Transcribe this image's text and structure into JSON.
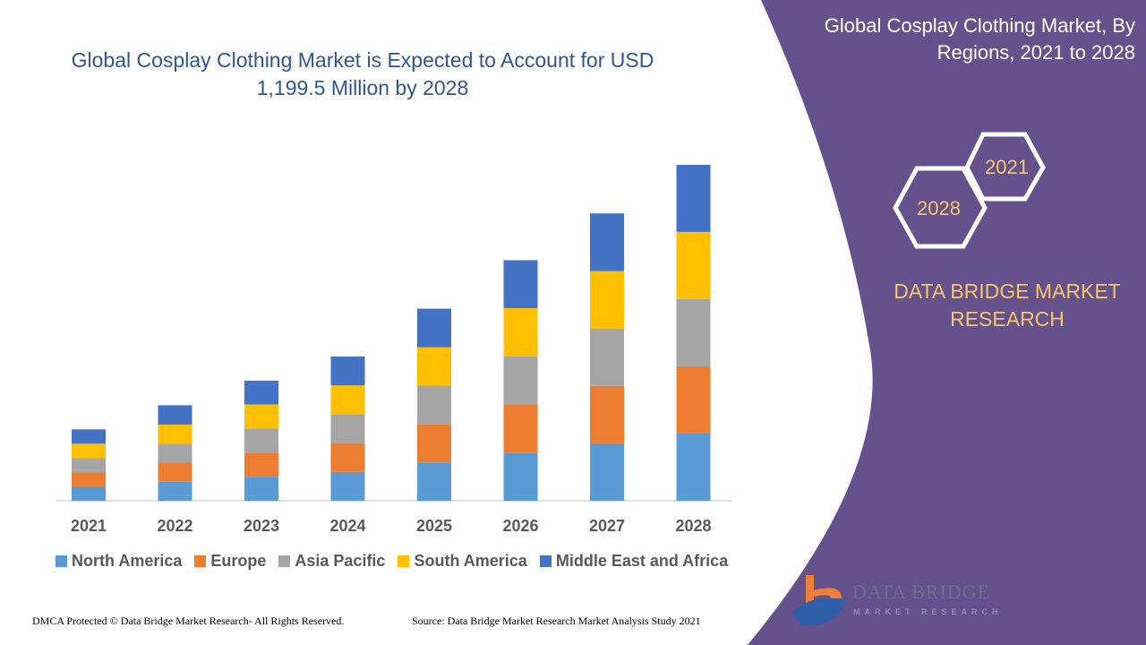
{
  "header": {
    "title": "Global Cosplay Clothing Market is Expected to Account for USD 1,199.5 Million by 2028"
  },
  "panel": {
    "title": "Global Cosplay Clothing Market, By Regions, 2021 to 2028",
    "hex_top": "2021",
    "hex_bottom": "2028",
    "brand": "DATA BRIDGE MARKET RESEARCH",
    "color": "#65518b",
    "accent": "#f5c76a"
  },
  "logo": {
    "name": "DATA BRIDGE",
    "sub": "MARKET RESEARCH"
  },
  "footer": {
    "left": "DMCA Protected © Data Bridge Market Research- All Rights Reserved.",
    "right": "Source: Data Bridge Market Research Market Analysis Study 2021"
  },
  "chart_data": {
    "type": "bar",
    "stacked": true,
    "title": "Global Cosplay Clothing Market is Expected to Account for USD 1,199.5 Million by 2028",
    "xlabel": "",
    "ylabel": "",
    "categories": [
      "2021",
      "2022",
      "2023",
      "2024",
      "2025",
      "2026",
      "2027",
      "2028"
    ],
    "ylim": [
      0,
      1200
    ],
    "grid": false,
    "legend_position": "bottom",
    "series": [
      {
        "name": "North America",
        "color": "#5b9bd5",
        "values": [
          51,
          68,
          86,
          103,
          137,
          172,
          205,
          240
        ]
      },
      {
        "name": "Europe",
        "color": "#ed7d31",
        "values": [
          51,
          68,
          86,
          103,
          137,
          172,
          205,
          240
        ]
      },
      {
        "name": "Asia Pacific",
        "color": "#a5a5a5",
        "values": [
          51,
          68,
          86,
          103,
          137,
          172,
          205,
          240
        ]
      },
      {
        "name": "South America",
        "color": "#ffc000",
        "values": [
          51,
          68,
          86,
          103,
          137,
          172,
          205,
          240
        ]
      },
      {
        "name": "Middle East and Africa",
        "color": "#4472c4",
        "values": [
          51,
          69,
          85,
          103,
          138,
          171,
          206,
          239.5
        ]
      }
    ]
  }
}
